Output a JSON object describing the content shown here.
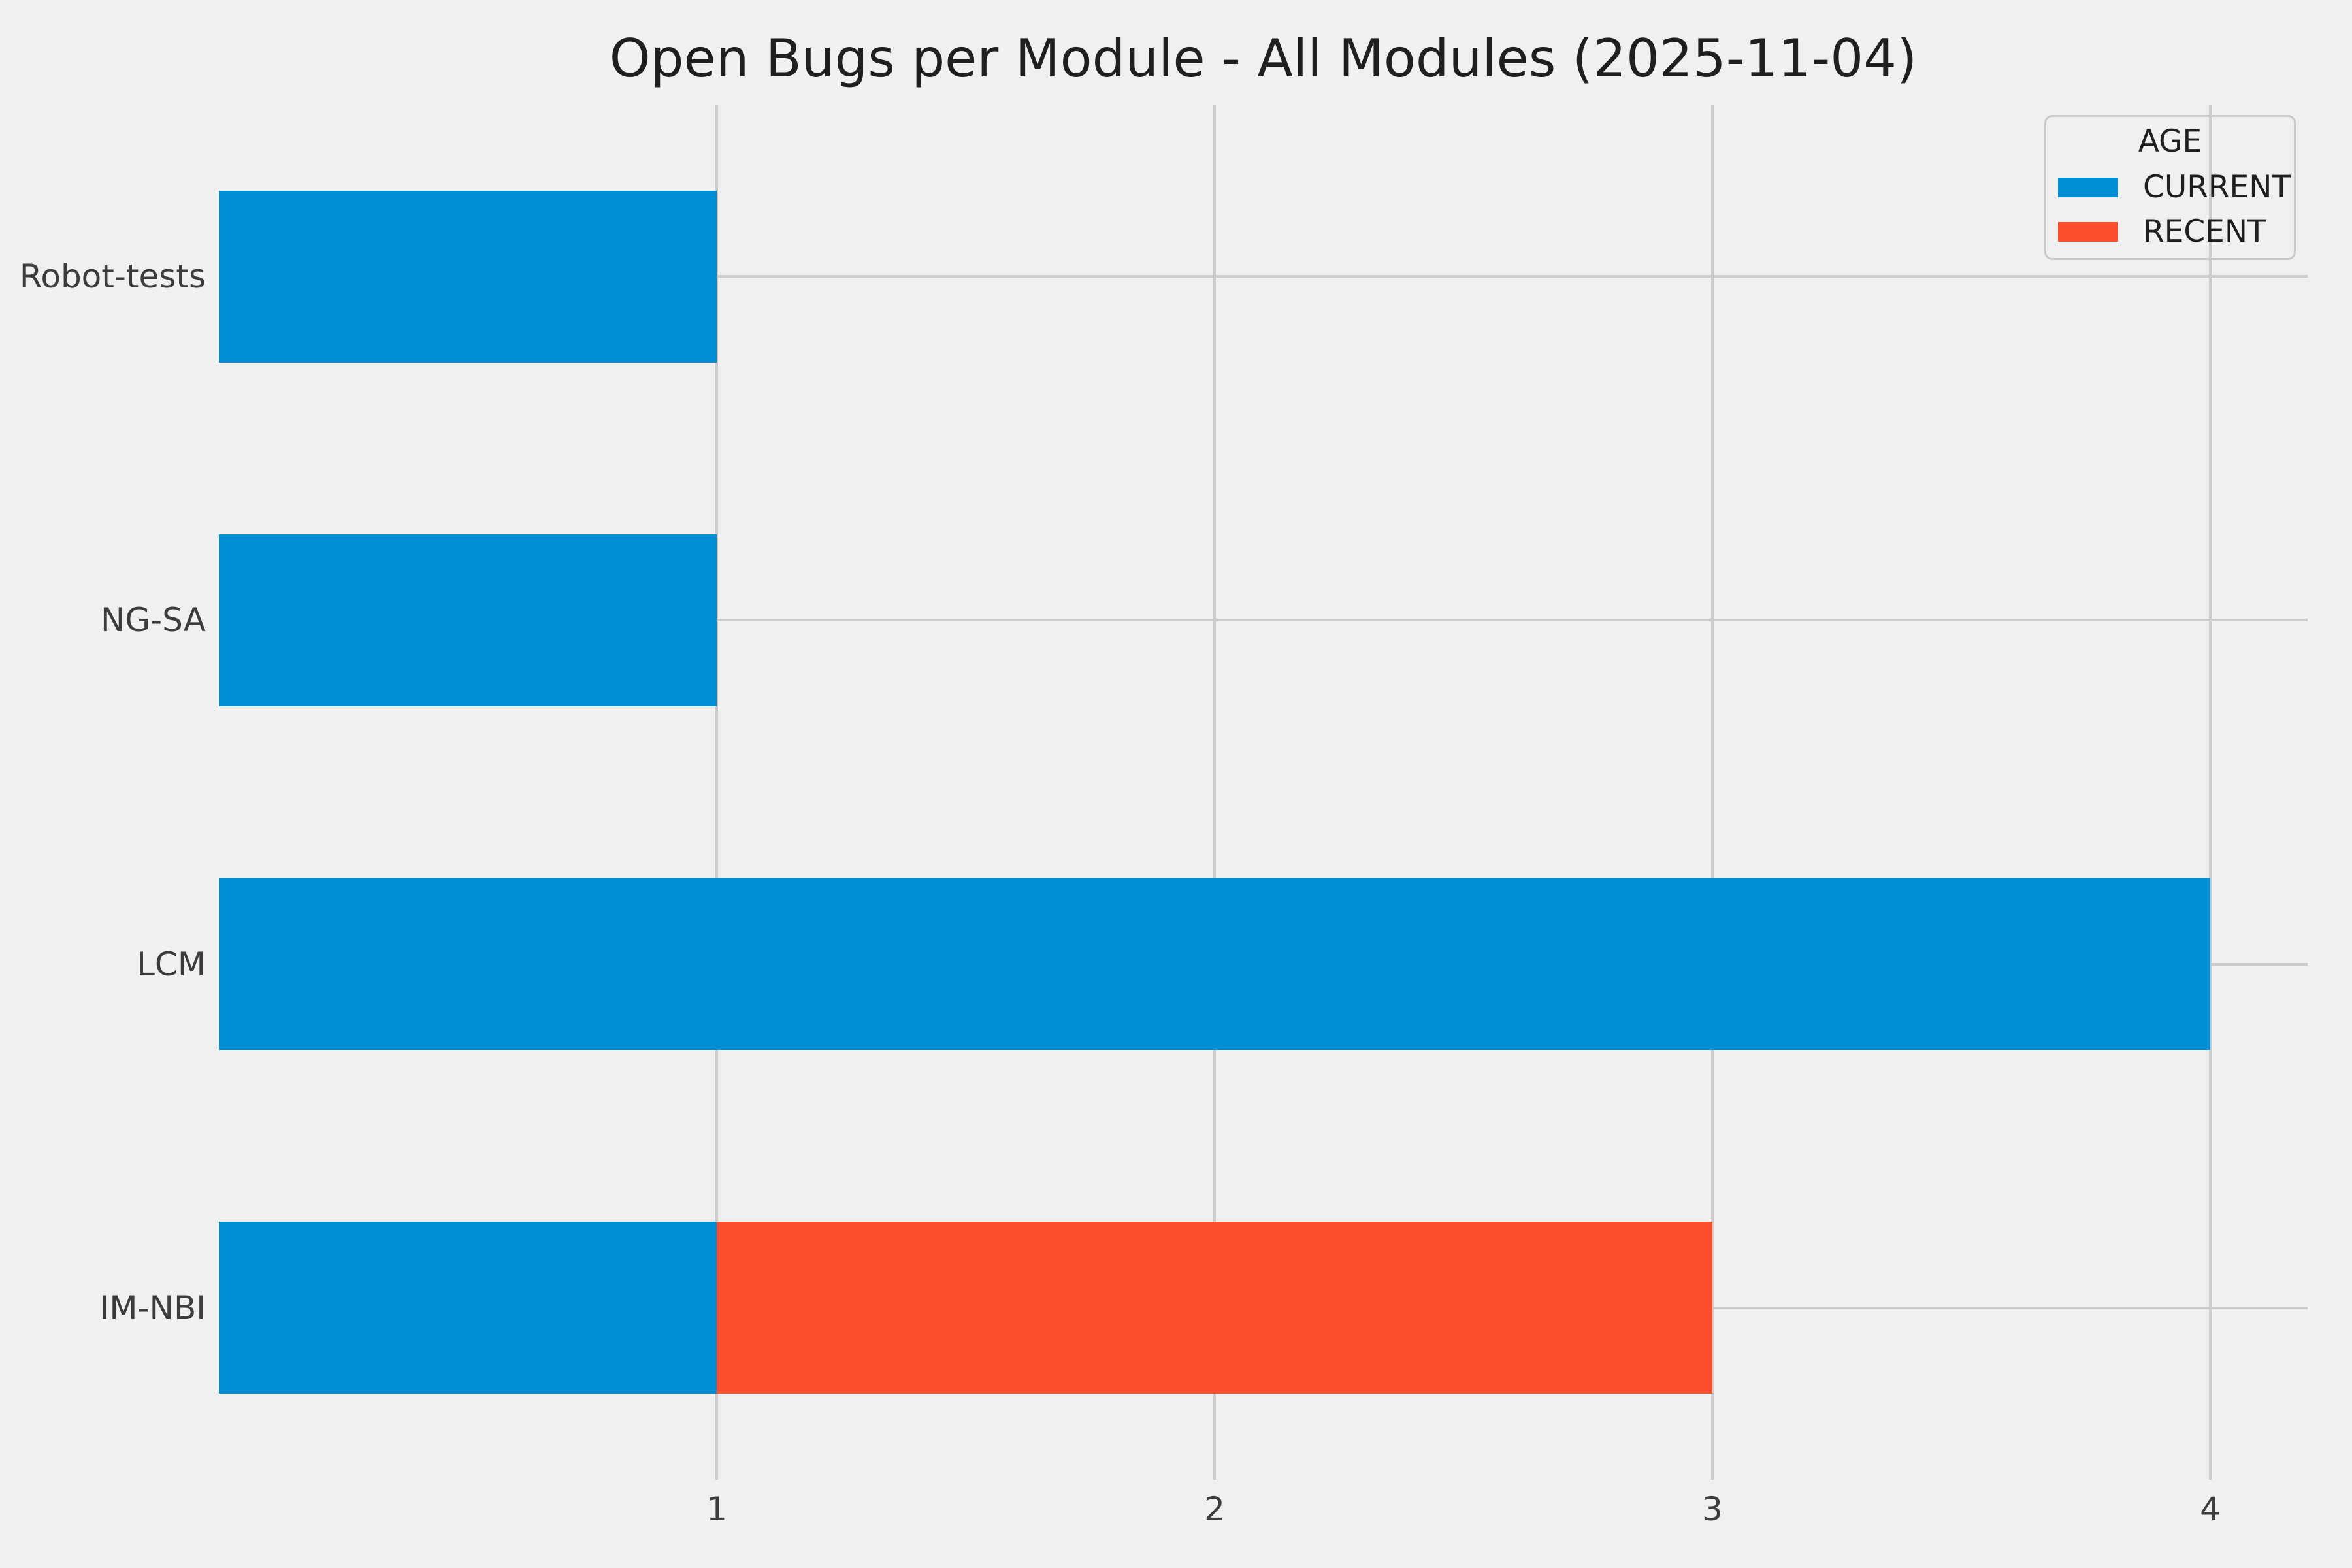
{
  "chart_data": {
    "type": "bar",
    "orientation": "horizontal",
    "stacked": true,
    "title": "Open Bugs per Module - All Modules (2025-11-04)",
    "categories": [
      "Robot-tests",
      "NG-SA",
      "LCM",
      "IM-NBI"
    ],
    "series": [
      {
        "name": "CURRENT",
        "color": "#008fd5",
        "values": [
          1,
          1,
          4,
          1
        ]
      },
      {
        "name": "RECENT",
        "color": "#fc4f30",
        "values": [
          0,
          0,
          0,
          2
        ]
      }
    ],
    "x_ticks": [
      "1",
      "2",
      "3",
      "4"
    ],
    "xlim": [
      0,
      4.2
    ],
    "xlabel": "",
    "ylabel": "",
    "grid": true,
    "legend": {
      "title": "AGE",
      "position": "upper right"
    },
    "colors": {
      "background": "#f0f0f0",
      "grid": "#cbcbcb",
      "title_text": "#1f1f1f",
      "tick_text": "#3c3c3c"
    }
  }
}
